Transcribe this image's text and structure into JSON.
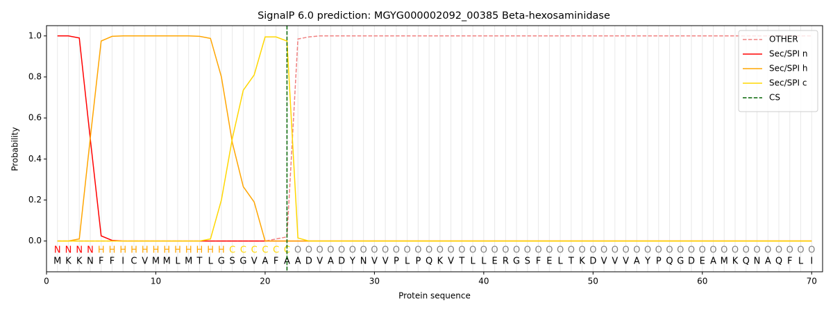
{
  "chart_data": {
    "type": "line",
    "title": "SignalP 6.0 prediction: MGYG000002092_00385 Beta-hexosaminidase",
    "xlabel": "Protein sequence",
    "ylabel": "Probability",
    "x": [
      1,
      2,
      3,
      4,
      5,
      6,
      7,
      8,
      9,
      10,
      11,
      12,
      13,
      14,
      15,
      16,
      17,
      18,
      19,
      20,
      21,
      22,
      23,
      24,
      25,
      26,
      27,
      28,
      29,
      30,
      31,
      32,
      33,
      34,
      35,
      36,
      37,
      38,
      39,
      40,
      41,
      42,
      43,
      44,
      45,
      46,
      47,
      48,
      49,
      50,
      51,
      52,
      53,
      54,
      55,
      56,
      57,
      58,
      59,
      60,
      61,
      62,
      63,
      64,
      65,
      66,
      67,
      68,
      69,
      70
    ],
    "sequence": [
      "M",
      "K",
      "K",
      "N",
      "F",
      "F",
      "I",
      "C",
      "V",
      "M",
      "M",
      "L",
      "M",
      "T",
      "L",
      "G",
      "S",
      "G",
      "V",
      "A",
      "F",
      "A",
      "A",
      "D",
      "V",
      "A",
      "D",
      "Y",
      "N",
      "V",
      "V",
      "P",
      "L",
      "P",
      "Q",
      "K",
      "V",
      "T",
      "L",
      "L",
      "E",
      "R",
      "G",
      "S",
      "F",
      "E",
      "L",
      "T",
      "K",
      "D",
      "V",
      "V",
      "V",
      "A",
      "Y",
      "P",
      "Q",
      "G",
      "D",
      "E",
      "A",
      "M",
      "K",
      "Q",
      "N",
      "A",
      "Q",
      "F",
      "L",
      "I"
    ],
    "labels": [
      "N",
      "N",
      "N",
      "N",
      "H",
      "H",
      "H",
      "H",
      "H",
      "H",
      "H",
      "H",
      "H",
      "H",
      "H",
      "H",
      "C",
      "C",
      "C",
      "C",
      "C",
      "C",
      "O",
      "O",
      "O",
      "O",
      "O",
      "O",
      "O",
      "O",
      "O",
      "O",
      "O",
      "O",
      "O",
      "O",
      "O",
      "O",
      "O",
      "O",
      "O",
      "O",
      "O",
      "O",
      "O",
      "O",
      "O",
      "O",
      "O",
      "O",
      "O",
      "O",
      "O",
      "O",
      "O",
      "O",
      "O",
      "O",
      "O",
      "O",
      "O",
      "O",
      "O",
      "O",
      "O",
      "O",
      "O",
      "O",
      "O",
      "O"
    ],
    "label_colors": {
      "N": "#ff0000",
      "H": "#ffa500",
      "C": "#ffd700",
      "O": "#808080"
    },
    "series": [
      {
        "name": "OTHER",
        "color": "#f08080",
        "dash": true,
        "values": [
          0,
          0,
          0,
          0,
          0,
          0,
          0,
          0,
          0,
          0,
          0,
          0,
          0,
          0,
          0,
          0,
          0,
          0,
          0,
          0,
          0.01,
          0.02,
          0.985,
          0.995,
          1,
          1,
          1,
          1,
          1,
          1,
          1,
          1,
          1,
          1,
          1,
          1,
          1,
          1,
          1,
          1,
          1,
          1,
          1,
          1,
          1,
          1,
          1,
          1,
          1,
          1,
          1,
          1,
          1,
          1,
          1,
          1,
          1,
          1,
          1,
          1,
          1,
          1,
          1,
          1,
          1,
          1,
          1,
          1,
          1,
          1
        ]
      },
      {
        "name": "Sec/SPI n",
        "color": "#ff0000",
        "values": [
          1,
          1,
          0.99,
          0.5,
          0.025,
          0.003,
          0,
          0,
          0,
          0,
          0,
          0,
          0,
          0,
          0,
          0,
          0,
          0,
          0,
          0,
          0,
          0,
          0,
          0,
          0,
          0,
          0,
          0,
          0,
          0,
          0,
          0,
          0,
          0,
          0,
          0,
          0,
          0,
          0,
          0,
          0,
          0,
          0,
          0,
          0,
          0,
          0,
          0,
          0,
          0,
          0,
          0,
          0,
          0,
          0,
          0,
          0,
          0,
          0,
          0,
          0,
          0,
          0,
          0,
          0,
          0,
          0,
          0,
          0,
          0
        ]
      },
      {
        "name": "Sec/SPI h",
        "color": "#ffa500",
        "values": [
          0,
          0,
          0.01,
          0.5,
          0.975,
          0.998,
          1,
          1,
          1,
          1,
          1,
          1,
          1,
          0.998,
          0.988,
          0.8,
          0.48,
          0.265,
          0.19,
          0,
          0,
          0,
          0,
          0,
          0,
          0,
          0,
          0,
          0,
          0,
          0,
          0,
          0,
          0,
          0,
          0,
          0,
          0,
          0,
          0,
          0,
          0,
          0,
          0,
          0,
          0,
          0,
          0,
          0,
          0,
          0,
          0,
          0,
          0,
          0,
          0,
          0,
          0,
          0,
          0,
          0,
          0,
          0,
          0,
          0,
          0,
          0,
          0,
          0,
          0
        ]
      },
      {
        "name": "Sec/SPI c",
        "color": "#ffd700",
        "values": [
          0,
          0,
          0,
          0,
          0,
          0,
          0,
          0,
          0,
          0,
          0,
          0,
          0,
          0,
          0.01,
          0.2,
          0.5,
          0.735,
          0.81,
          0.995,
          0.995,
          0.975,
          0.015,
          0,
          0,
          0,
          0,
          0,
          0,
          0,
          0,
          0,
          0,
          0,
          0,
          0,
          0,
          0,
          0,
          0,
          0,
          0,
          0,
          0,
          0,
          0,
          0,
          0,
          0,
          0,
          0,
          0,
          0,
          0,
          0,
          0,
          0,
          0,
          0,
          0,
          0,
          0,
          0,
          0,
          0,
          0,
          0,
          0,
          0,
          0
        ]
      }
    ],
    "cs": {
      "name": "CS",
      "x": 22,
      "color": "#006400"
    },
    "xlim": [
      0,
      71
    ],
    "ylim": [
      -0.15,
      1.05
    ],
    "xticks": [
      0,
      10,
      20,
      30,
      40,
      50,
      60,
      70
    ],
    "yticks": [
      {
        "value": 0,
        "label": "0.0"
      },
      {
        "value": 0.2,
        "label": "0.2"
      },
      {
        "value": 0.4,
        "label": "0.4"
      },
      {
        "value": 0.6,
        "label": "0.6"
      },
      {
        "value": 0.8,
        "label": "0.8"
      },
      {
        "value": 1,
        "label": "1.0"
      }
    ],
    "legend": "upper right"
  }
}
